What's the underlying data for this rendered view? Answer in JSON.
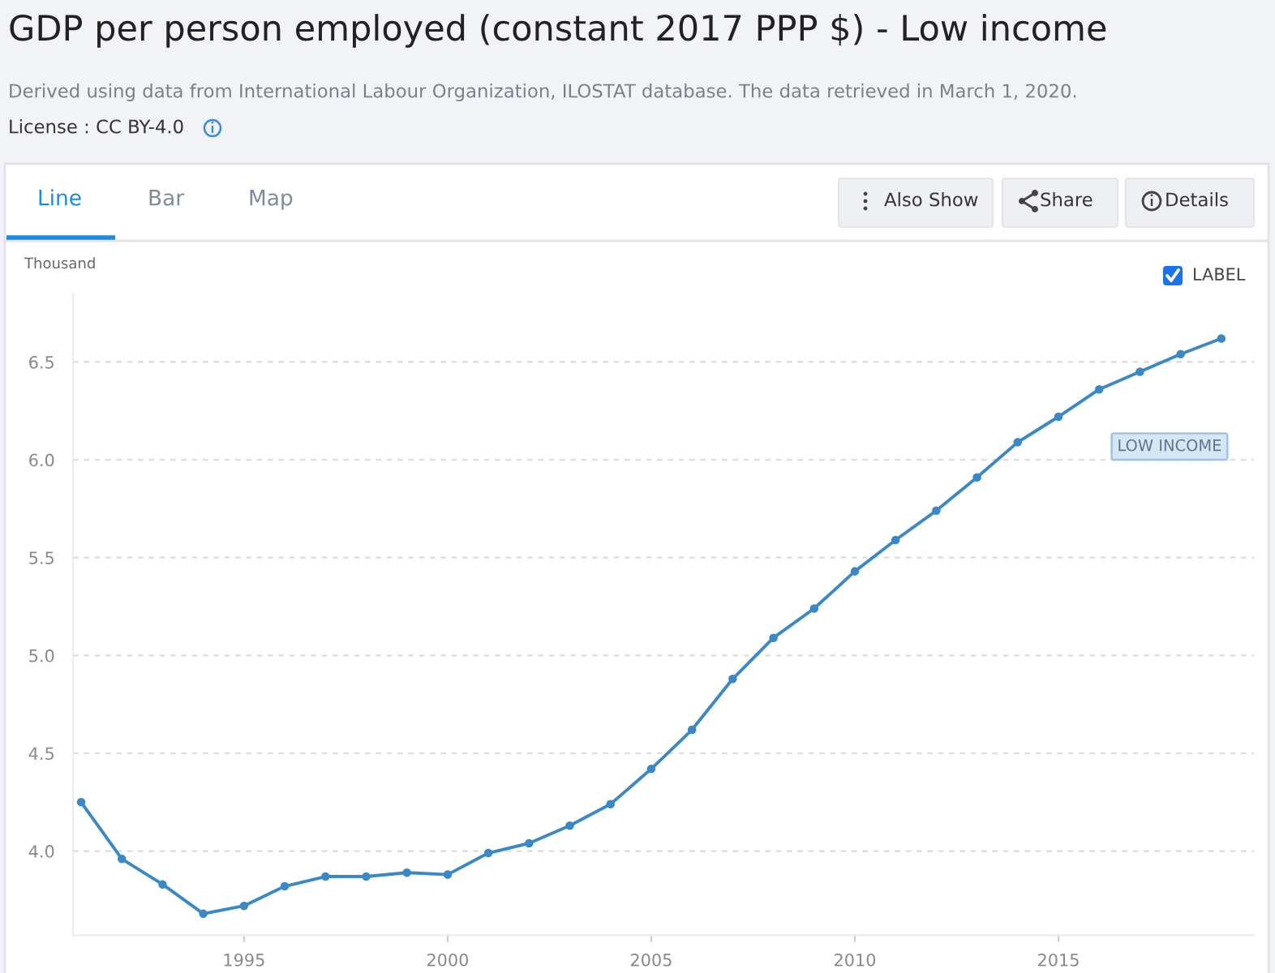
{
  "chart_data": {
    "type": "line",
    "title": "GDP per person employed (constant 2017 PPP $) - Low income",
    "subtitle": "Derived using data from International Labour Organization, ILOSTAT database. The data retrieved in March 1, 2020.",
    "ylabel": "Thousand",
    "x": [
      1991,
      1992,
      1993,
      1994,
      1995,
      1996,
      1997,
      1998,
      1999,
      2000,
      2001,
      2002,
      2003,
      2004,
      2005,
      2006,
      2007,
      2008,
      2009,
      2010,
      2011,
      2012,
      2013,
      2014,
      2015,
      2016,
      2017,
      2018,
      2019
    ],
    "series": [
      {
        "name": "LOW INCOME",
        "color": "#3b89c4",
        "values": [
          4.25,
          3.96,
          3.83,
          3.68,
          3.72,
          3.82,
          3.87,
          3.87,
          3.89,
          3.88,
          3.99,
          4.04,
          4.13,
          4.24,
          4.42,
          4.62,
          4.88,
          5.09,
          5.24,
          5.43,
          5.59,
          5.74,
          5.91,
          6.09,
          6.22,
          6.36,
          6.45,
          6.54,
          6.62
        ]
      }
    ],
    "xlim": [
      1990.8,
      2019.8
    ],
    "xticks": [
      1995,
      2000,
      2005,
      2010,
      2015
    ],
    "ylim": [
      3.57,
      6.85
    ],
    "yticks": [
      {
        "value": 4,
        "label": "4.0"
      },
      {
        "value": 4.5,
        "label": "4.5"
      },
      {
        "value": 5,
        "label": "5.0"
      },
      {
        "value": 5.5,
        "label": "5.5"
      },
      {
        "value": 6,
        "label": "6.0"
      },
      {
        "value": 6.5,
        "label": "6.5"
      }
    ],
    "grid": "y",
    "marker": "circle",
    "line_style": "solid",
    "annotations": [
      "License : CC BY-4.0",
      "Line",
      "Bar",
      "Map",
      "Also Show",
      "Share",
      "Details",
      "LABEL"
    ]
  }
}
